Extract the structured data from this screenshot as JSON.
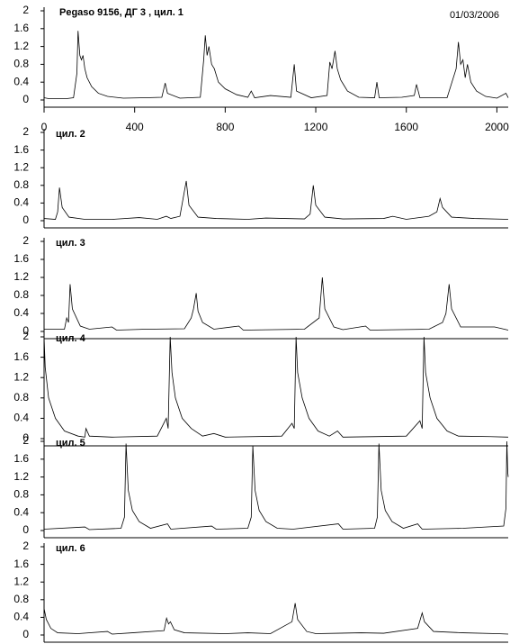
{
  "chart_data": [
    {
      "type": "line",
      "title": "Pegaso 9156,  ДГ 3 , цил. 1",
      "annotation": "01/03/2006",
      "color": "#000000",
      "xlim": [
        0,
        2050
      ],
      "xticks": [
        0,
        400,
        800,
        1200,
        1600,
        2000
      ],
      "ylim": [
        0,
        2
      ],
      "yticks": [
        0,
        0.4,
        0.8,
        1.2,
        1.6,
        2
      ],
      "x": [
        0,
        20,
        100,
        130,
        145,
        150,
        158,
        165,
        172,
        180,
        190,
        210,
        240,
        280,
        350,
        450,
        520,
        535,
        545,
        600,
        690,
        705,
        712,
        720,
        728,
        740,
        752,
        770,
        800,
        850,
        900,
        915,
        930,
        1000,
        1090,
        1105,
        1115,
        1180,
        1250,
        1262,
        1272,
        1285,
        1295,
        1310,
        1340,
        1390,
        1460,
        1470,
        1480,
        1580,
        1635,
        1645,
        1660,
        1780,
        1820,
        1830,
        1840,
        1850,
        1860,
        1870,
        1885,
        1910,
        1950,
        2000,
        2040,
        2050
      ],
      "values": [
        0.05,
        0.03,
        0.03,
        0.05,
        0.6,
        1.55,
        1.0,
        0.9,
        1.0,
        0.7,
        0.5,
        0.3,
        0.15,
        0.08,
        0.04,
        0.05,
        0.06,
        0.38,
        0.15,
        0.04,
        0.06,
        0.9,
        1.45,
        1.0,
        1.2,
        0.8,
        0.7,
        0.4,
        0.25,
        0.12,
        0.06,
        0.2,
        0.05,
        0.1,
        0.06,
        0.8,
        0.2,
        0.05,
        0.1,
        0.85,
        0.7,
        1.1,
        0.7,
        0.45,
        0.2,
        0.06,
        0.05,
        0.4,
        0.05,
        0.06,
        0.1,
        0.35,
        0.05,
        0.05,
        0.7,
        1.3,
        0.8,
        0.9,
        0.5,
        0.8,
        0.4,
        0.2,
        0.08,
        0.04,
        0.15,
        0.05
      ]
    },
    {
      "type": "line",
      "title": "цил. 2",
      "color": "#000000",
      "xlim": [
        0,
        2050
      ],
      "ylim": [
        0,
        2
      ],
      "yticks": [
        0,
        0.4,
        0.8,
        1.2,
        1.6,
        2
      ],
      "x": [
        0,
        50,
        60,
        68,
        80,
        110,
        180,
        300,
        420,
        500,
        540,
        560,
        600,
        628,
        640,
        680,
        760,
        900,
        980,
        1150,
        1175,
        1189,
        1200,
        1240,
        1320,
        1500,
        1540,
        1600,
        1700,
        1735,
        1749,
        1760,
        1800,
        1900,
        2050
      ],
      "values": [
        0.05,
        0.03,
        0.2,
        0.75,
        0.3,
        0.08,
        0.03,
        0.03,
        0.07,
        0.03,
        0.1,
        0.05,
        0.1,
        0.9,
        0.35,
        0.08,
        0.05,
        0.03,
        0.06,
        0.04,
        0.15,
        0.8,
        0.35,
        0.08,
        0.04,
        0.05,
        0.1,
        0.03,
        0.1,
        0.2,
        0.5,
        0.3,
        0.08,
        0.05,
        0.03
      ]
    },
    {
      "type": "line",
      "title": "цил. 3",
      "color": "#000000",
      "xlim": [
        0,
        2050
      ],
      "ylim": [
        0,
        2
      ],
      "yticks": [
        0,
        0.4,
        0.8,
        1.2,
        1.6,
        2
      ],
      "x": [
        0,
        90,
        100,
        108,
        115,
        125,
        160,
        200,
        300,
        320,
        450,
        620,
        650,
        660,
        672,
        680,
        700,
        750,
        860,
        880,
        1150,
        1215,
        1229,
        1240,
        1280,
        1320,
        1420,
        1440,
        1700,
        1760,
        1775,
        1789,
        1800,
        1840,
        1990,
        2050
      ],
      "values": [
        0.05,
        0.05,
        0.3,
        0.2,
        1.05,
        0.5,
        0.12,
        0.05,
        0.1,
        0.03,
        0.05,
        0.06,
        0.3,
        0.5,
        0.85,
        0.45,
        0.2,
        0.05,
        0.12,
        0.03,
        0.05,
        0.3,
        1.2,
        0.5,
        0.1,
        0.04,
        0.12,
        0.03,
        0.05,
        0.2,
        0.4,
        1.05,
        0.5,
        0.1,
        0.1,
        0.03
      ]
    },
    {
      "type": "line",
      "title": "цил. 4",
      "color": "#000000",
      "xlim": [
        0,
        2050
      ],
      "ylim": [
        0,
        2
      ],
      "yticks": [
        0,
        0.4,
        0.8,
        1.2,
        1.6,
        2
      ],
      "x": [
        0,
        5,
        20,
        50,
        90,
        150,
        180,
        185,
        200,
        300,
        500,
        540,
        548,
        557,
        565,
        580,
        610,
        650,
        700,
        750,
        800,
        1050,
        1095,
        1105,
        1113,
        1120,
        1140,
        1170,
        1210,
        1260,
        1296,
        1320,
        1600,
        1660,
        1670,
        1678,
        1685,
        1705,
        1735,
        1780,
        1830,
        1970,
        2050
      ],
      "values": [
        2.0,
        1.4,
        0.8,
        0.4,
        0.15,
        0.05,
        0.03,
        0.2,
        0.05,
        0.03,
        0.05,
        0.4,
        0.2,
        2.0,
        1.3,
        0.8,
        0.4,
        0.2,
        0.05,
        0.1,
        0.03,
        0.05,
        0.3,
        0.2,
        2.0,
        1.3,
        0.8,
        0.4,
        0.15,
        0.05,
        0.15,
        0.03,
        0.05,
        0.35,
        0.2,
        2.0,
        1.3,
        0.8,
        0.4,
        0.15,
        0.05,
        0.04,
        0.03
      ]
    },
    {
      "type": "line",
      "title": "цил. 5",
      "color": "#000000",
      "xlim": [
        0,
        2050
      ],
      "ylim": [
        0,
        2
      ],
      "yticks": [
        0,
        0.4,
        0.8,
        1.2,
        1.6,
        2
      ],
      "x": [
        0,
        180,
        200,
        340,
        355,
        362,
        372,
        390,
        420,
        470,
        545,
        560,
        740,
        760,
        900,
        915,
        922,
        932,
        950,
        980,
        1030,
        1100,
        1300,
        1320,
        1460,
        1472,
        1479,
        1489,
        1507,
        1537,
        1587,
        1650,
        1670,
        1850,
        2030,
        2040,
        2044,
        2048,
        2050
      ],
      "values": [
        0.03,
        0.08,
        0.02,
        0.05,
        0.3,
        1.95,
        0.9,
        0.45,
        0.2,
        0.05,
        0.15,
        0.03,
        0.1,
        0.03,
        0.05,
        0.3,
        1.9,
        0.9,
        0.45,
        0.2,
        0.05,
        0.03,
        0.15,
        0.03,
        0.05,
        0.3,
        1.95,
        0.9,
        0.45,
        0.2,
        0.05,
        0.15,
        0.03,
        0.05,
        0.1,
        0.5,
        2.0,
        1.3,
        1.2
      ]
    },
    {
      "type": "line",
      "title": "цил. 6",
      "color": "#000000",
      "xlim": [
        0,
        2050
      ],
      "ylim": [
        0,
        2
      ],
      "yticks": [
        0,
        0.4,
        0.8,
        1.2,
        1.6,
        2
      ],
      "x": [
        0,
        10,
        30,
        60,
        150,
        280,
        300,
        390,
        530,
        541,
        550,
        558,
        575,
        620,
        800,
        900,
        1000,
        1095,
        1109,
        1120,
        1160,
        1200,
        1400,
        1500,
        1650,
        1670,
        1680,
        1720,
        1850,
        2000,
        2050
      ],
      "values": [
        0.6,
        0.35,
        0.15,
        0.05,
        0.03,
        0.08,
        0.02,
        0.05,
        0.1,
        0.38,
        0.25,
        0.3,
        0.12,
        0.05,
        0.03,
        0.05,
        0.03,
        0.3,
        0.72,
        0.35,
        0.08,
        0.03,
        0.05,
        0.04,
        0.15,
        0.5,
        0.3,
        0.08,
        0.05,
        0.03,
        0.02
      ]
    }
  ]
}
